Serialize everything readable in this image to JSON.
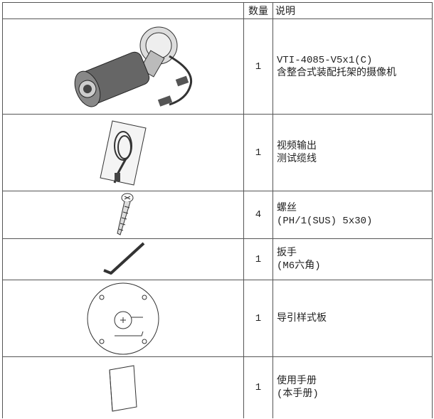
{
  "table": {
    "header": {
      "quantity": "数量",
      "description": "说明"
    },
    "rows": [
      {
        "quantity": 1,
        "description": [
          "VTI-4085-V5x1(C)",
          "含整合式装配托架的摄像机"
        ]
      },
      {
        "quantity": 1,
        "description": [
          "视频输出",
          "测试缆线"
        ]
      },
      {
        "quantity": 4,
        "description": [
          "螺丝",
          "(PH/1(SUS) 5x30)"
        ]
      },
      {
        "quantity": 1,
        "description": [
          "扳手",
          "(M6六角)"
        ]
      },
      {
        "quantity": 1,
        "description": [
          "导引样式板"
        ]
      },
      {
        "quantity": 1,
        "description": [
          "使用手册",
          "(本手册)"
        ]
      }
    ]
  }
}
